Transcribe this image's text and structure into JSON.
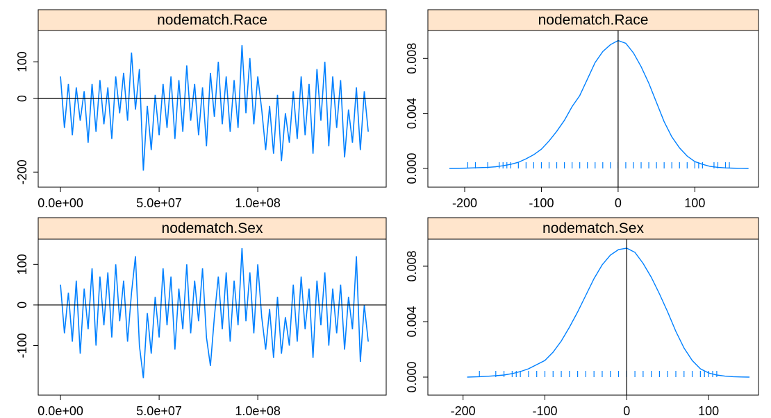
{
  "chart_data": [
    {
      "type": "line",
      "title": "nodematch.Race",
      "color": "#0080ff",
      "hline": 0,
      "x": [
        0,
        2000000.0,
        4000000.0,
        6000000.0,
        8000000.0,
        10000000.0,
        12000000.0,
        14000000.0,
        16000000.0,
        18000000.0,
        20000000.0,
        22000000.0,
        24000000.0,
        26000000.0,
        28000000.0,
        30000000.0,
        32000000.0,
        34000000.0,
        36000000.0,
        38000000.0,
        40000000.0,
        42000000.0,
        44000000.0,
        46000000.0,
        48000000.0,
        50000000.0,
        52000000.0,
        54000000.0,
        56000000.0,
        58000000.0,
        60000000.0,
        62000000.0,
        64000000.0,
        66000000.0,
        68000000.0,
        70000000.0,
        72000000.0,
        74000000.0,
        76000000.0,
        78000000.0,
        80000000.0,
        82000000.0,
        84000000.0,
        86000000.0,
        88000000.0,
        90000000.0,
        92000000.0,
        94000000.0,
        96000000.0,
        98000000.0,
        100000000.0,
        102000000.0,
        104000000.0,
        106000000.0,
        108000000.0,
        110000000.0,
        112000000.0,
        114000000.0,
        116000000.0,
        118000000.0,
        120000000.0,
        122000000.0,
        124000000.0,
        126000000.0,
        128000000.0,
        130000000.0,
        132000000.0,
        134000000.0,
        136000000.0,
        138000000.0,
        140000000.0,
        142000000.0,
        144000000.0,
        146000000.0,
        148000000.0,
        150000000.0,
        152000000.0,
        154000000.0,
        156000000.0
      ],
      "values": [
        60,
        -80,
        40,
        -100,
        30,
        -60,
        20,
        -120,
        40,
        -90,
        50,
        -70,
        30,
        -110,
        60,
        -40,
        70,
        -60,
        125,
        -30,
        80,
        -196,
        -20,
        -140,
        10,
        -100,
        40,
        -80,
        60,
        -110,
        50,
        -90,
        90,
        -60,
        40,
        -100,
        30,
        -130,
        70,
        -50,
        100,
        -70,
        60,
        -90,
        50,
        -80,
        145,
        -40,
        110,
        -70,
        60,
        -30,
        -140,
        -20,
        -150,
        10,
        -170,
        -40,
        -120,
        20,
        -110,
        60,
        -100,
        40,
        -150,
        80,
        -60,
        100,
        -130,
        60,
        -80,
        50,
        -160,
        -30,
        -120,
        30,
        -140,
        20,
        -90
      ],
      "xlim": [
        -11300000,
        165100000
      ],
      "ylim": [
        -241,
        185
      ],
      "xticks": [
        {
          "value": 0,
          "label": "0.0e+00"
        },
        {
          "value": 50000000,
          "label": "5.0e+07"
        },
        {
          "value": 100000000,
          "label": "1.0e+08"
        }
      ],
      "yticks": [
        -200,
        0,
        100
      ]
    },
    {
      "type": "density",
      "title": "nodematch.Race",
      "color": "#0080ff",
      "vline": 0,
      "x": [
        -220,
        -200,
        -190,
        -180,
        -170,
        -160,
        -150,
        -140,
        -130,
        -120,
        -110,
        -100,
        -90,
        -80,
        -70,
        -60,
        -50,
        -40,
        -30,
        -20,
        -10,
        0,
        10,
        20,
        30,
        40,
        50,
        60,
        70,
        80,
        90,
        100,
        110,
        120,
        130,
        140,
        150,
        160,
        170
      ],
      "values": [
        0,
        2e-05,
        4e-05,
        6e-05,
        8e-05,
        0.00012,
        0.0002,
        0.0003,
        0.00045,
        0.0007,
        0.001,
        0.0014,
        0.002,
        0.0027,
        0.0035,
        0.0045,
        0.0053,
        0.0065,
        0.0077,
        0.0085,
        0.009,
        0.0093,
        0.0091,
        0.0084,
        0.0074,
        0.0062,
        0.0048,
        0.0034,
        0.0023,
        0.0015,
        0.0009,
        0.0005,
        0.0003,
        0.00015,
        8e-05,
        4e-05,
        2e-05,
        1e-05,
        0
      ],
      "rug": [
        -196,
        -186,
        -170,
        -155,
        -150,
        -145,
        -140,
        -130,
        -120,
        -110,
        -100,
        -90,
        -80,
        -70,
        -60,
        -50,
        -40,
        -30,
        -20,
        -10,
        0,
        10,
        20,
        30,
        40,
        50,
        60,
        70,
        80,
        90,
        100,
        105,
        110,
        125,
        130,
        140,
        145
      ],
      "xlim": [
        -248,
        183
      ],
      "ylim": [
        -0.00136,
        0.01003
      ],
      "xticks": [
        -200,
        -100,
        0,
        100
      ],
      "yticks": [
        {
          "value": 0,
          "label": "0.000"
        },
        {
          "value": 0.004,
          "label": "0.004"
        },
        {
          "value": 0.008,
          "label": "0.008"
        }
      ]
    },
    {
      "type": "line",
      "title": "nodematch.Sex",
      "color": "#0080ff",
      "hline": 0,
      "x": [
        0,
        2000000.0,
        4000000.0,
        6000000.0,
        8000000.0,
        10000000.0,
        12000000.0,
        14000000.0,
        16000000.0,
        18000000.0,
        20000000.0,
        22000000.0,
        24000000.0,
        26000000.0,
        28000000.0,
        30000000.0,
        32000000.0,
        34000000.0,
        36000000.0,
        38000000.0,
        40000000.0,
        42000000.0,
        44000000.0,
        46000000.0,
        48000000.0,
        50000000.0,
        52000000.0,
        54000000.0,
        56000000.0,
        58000000.0,
        60000000.0,
        62000000.0,
        64000000.0,
        66000000.0,
        68000000.0,
        70000000.0,
        72000000.0,
        74000000.0,
        76000000.0,
        78000000.0,
        80000000.0,
        82000000.0,
        84000000.0,
        86000000.0,
        88000000.0,
        90000000.0,
        92000000.0,
        94000000.0,
        96000000.0,
        98000000.0,
        100000000.0,
        102000000.0,
        104000000.0,
        106000000.0,
        108000000.0,
        110000000.0,
        112000000.0,
        114000000.0,
        116000000.0,
        118000000.0,
        120000000.0,
        122000000.0,
        124000000.0,
        126000000.0,
        128000000.0,
        130000000.0,
        132000000.0,
        134000000.0,
        136000000.0,
        138000000.0,
        140000000.0,
        142000000.0,
        144000000.0,
        146000000.0,
        148000000.0,
        150000000.0,
        152000000.0,
        154000000.0,
        156000000.0
      ],
      "values": [
        50,
        -70,
        30,
        -90,
        60,
        -120,
        40,
        -60,
        90,
        -100,
        70,
        -50,
        80,
        -80,
        100,
        -40,
        60,
        -90,
        30,
        120,
        -100,
        -180,
        -20,
        -120,
        20,
        -80,
        90,
        -50,
        70,
        -110,
        40,
        -60,
        100,
        -70,
        60,
        -40,
        90,
        -80,
        -150,
        -30,
        70,
        -60,
        80,
        -90,
        60,
        -50,
        140,
        -40,
        80,
        -70,
        100,
        -30,
        -110,
        -10,
        -130,
        20,
        -120,
        -30,
        -100,
        50,
        -90,
        70,
        -60,
        40,
        -130,
        60,
        -50,
        80,
        -100,
        40,
        -70,
        50,
        -110,
        20,
        -60,
        120,
        -140,
        0,
        -90
      ],
      "xlim": [
        -11300000,
        165100000
      ],
      "ylim": [
        -222,
        162
      ],
      "xticks": [
        {
          "value": 0,
          "label": "0.0e+00"
        },
        {
          "value": 50000000,
          "label": "5.0e+07"
        },
        {
          "value": 100000000,
          "label": "1.0e+08"
        }
      ],
      "yticks": [
        -100,
        0,
        100
      ]
    },
    {
      "type": "density",
      "title": "nodematch.Sex",
      "color": "#0080ff",
      "vline": 0,
      "x": [
        -195,
        -180,
        -170,
        -160,
        -150,
        -140,
        -130,
        -120,
        -110,
        -100,
        -90,
        -80,
        -70,
        -60,
        -50,
        -40,
        -30,
        -20,
        -10,
        0,
        10,
        20,
        30,
        40,
        50,
        60,
        70,
        80,
        90,
        100,
        110,
        120,
        130,
        140,
        150
      ],
      "values": [
        0,
        3e-05,
        6e-05,
        0.0001,
        0.00015,
        0.00025,
        0.0004,
        0.0006,
        0.0009,
        0.0012,
        0.0018,
        0.0026,
        0.0036,
        0.0047,
        0.0059,
        0.0071,
        0.0081,
        0.0088,
        0.0092,
        0.0093,
        0.009,
        0.0082,
        0.0072,
        0.006,
        0.0047,
        0.0033,
        0.0021,
        0.0012,
        0.0006,
        0.0003,
        0.00015,
        7e-05,
        3e-05,
        1e-05,
        0
      ],
      "rug": [
        -180,
        -160,
        -150,
        -140,
        -135,
        -130,
        -120,
        -110,
        -100,
        -90,
        -80,
        -70,
        -60,
        -50,
        -40,
        -30,
        -20,
        -10,
        0,
        10,
        20,
        30,
        40,
        50,
        60,
        70,
        80,
        90,
        95,
        100,
        105,
        110
      ],
      "xlim": [
        -243,
        161
      ],
      "ylim": [
        -0.0013,
        0.00995
      ],
      "xticks": [
        -200,
        -100,
        0,
        100
      ],
      "yticks": [
        {
          "value": 0,
          "label": "0.000"
        },
        {
          "value": 0.004,
          "label": "0.004"
        },
        {
          "value": 0.008,
          "label": "0.008"
        }
      ]
    }
  ]
}
